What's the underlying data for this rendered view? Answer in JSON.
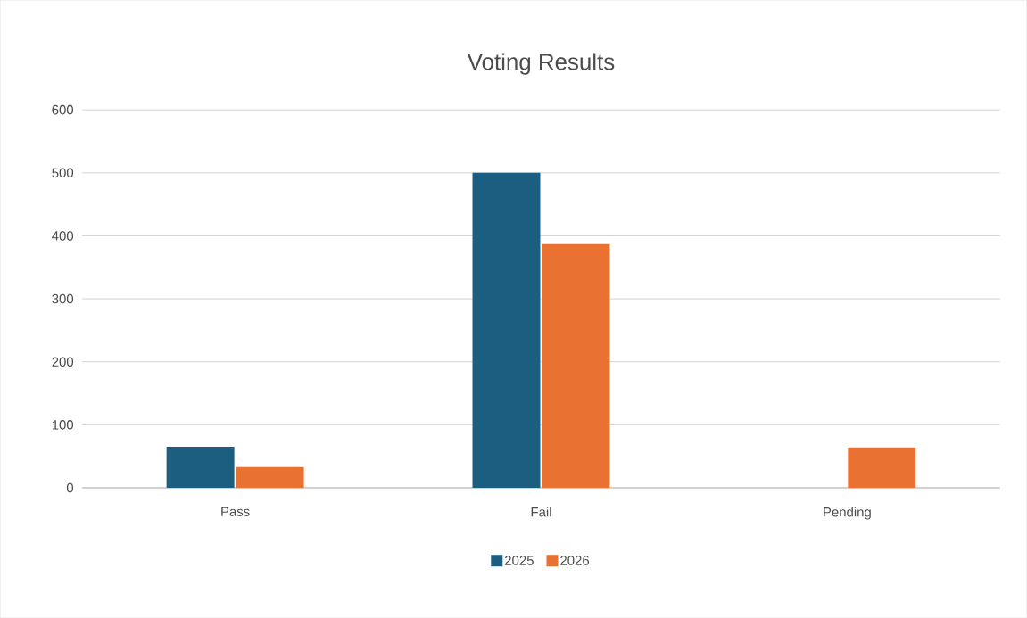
{
  "chart_data": {
    "type": "bar",
    "title": "Voting Results",
    "categories": [
      "Pass",
      "Fail",
      "Pending"
    ],
    "series": [
      {
        "name": "2025",
        "color": "#1b5e80",
        "values": [
          65,
          500,
          null
        ]
      },
      {
        "name": "2026",
        "color": "#e97132",
        "values": [
          33,
          387,
          64
        ]
      }
    ],
    "ylim": [
      0,
      600
    ],
    "yticks": [
      0,
      100,
      200,
      300,
      400,
      500,
      600
    ],
    "grid": "y",
    "legend": "bottom"
  }
}
